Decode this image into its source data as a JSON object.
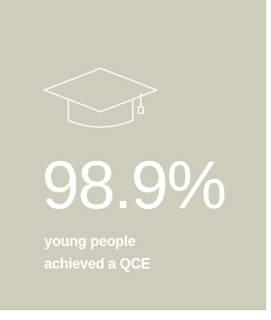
{
  "stat": {
    "value": "98.9%",
    "label_lines": [
      "young people",
      "achieved a QCE"
    ]
  }
}
